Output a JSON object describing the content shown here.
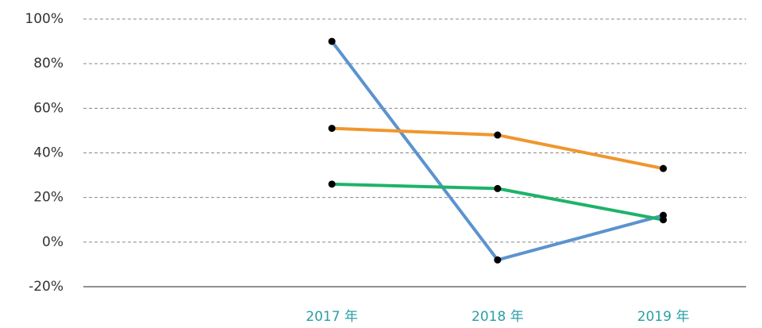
{
  "chart_data": {
    "type": "line",
    "categories": [
      null,
      "2017 年",
      "2018 年",
      "2019 年"
    ],
    "series": [
      {
        "color": "#5b93cf",
        "values": [
          null,
          90,
          -8,
          12
        ]
      },
      {
        "color": "#f0962e",
        "values": [
          null,
          51,
          48,
          33
        ]
      },
      {
        "color": "#1db36a",
        "values": [
          null,
          26,
          24,
          10
        ]
      }
    ],
    "ylim": [
      -20,
      100
    ],
    "yticks": [
      {
        "value": -20,
        "label": "-20%"
      },
      {
        "value": 0,
        "label": "0%"
      },
      {
        "value": 20,
        "label": "20%"
      },
      {
        "value": 40,
        "label": "40%"
      },
      {
        "value": 60,
        "label": "60%"
      },
      {
        "value": 80,
        "label": "80%"
      },
      {
        "value": 100,
        "label": "100%"
      }
    ],
    "grid": true
  }
}
